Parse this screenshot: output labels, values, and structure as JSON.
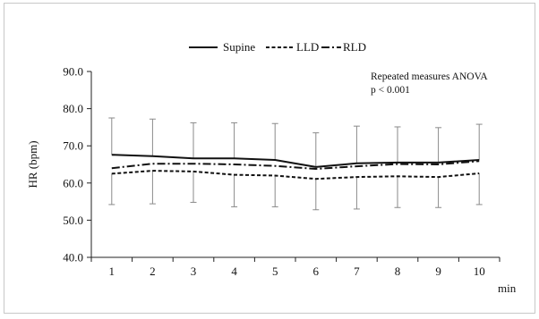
{
  "chart_data": {
    "type": "line",
    "title": "",
    "xlabel": "min",
    "ylabel": "HR  (bpm)",
    "x": [
      1,
      2,
      3,
      4,
      5,
      6,
      7,
      8,
      9,
      10
    ],
    "x_tick_labels": [
      "1",
      "2",
      "3",
      "4",
      "5",
      "6",
      "7",
      "8",
      "9",
      "10"
    ],
    "y_tick_labels": [
      "40.0",
      "50.0",
      "60.0",
      "70.0",
      "80.0",
      "90.0"
    ],
    "ylim": [
      40,
      90
    ],
    "y_ticks": [
      40,
      50,
      60,
      70,
      80,
      90
    ],
    "grid": false,
    "legend_position": "top-center",
    "series": [
      {
        "name": "Supine",
        "line_style": "solid",
        "values": [
          67.6,
          67.2,
          66.6,
          66.6,
          66.2,
          64.3,
          65.3,
          65.5,
          65.5,
          66.2
        ],
        "error_upper": [
          77.5,
          77.2,
          76.2,
          76.2,
          76.0,
          73.5,
          75.3,
          75.1,
          74.9,
          75.8
        ]
      },
      {
        "name": "LLD",
        "line_style": "dashed",
        "values": [
          62.5,
          63.3,
          63.1,
          62.2,
          62.0,
          61.1,
          61.6,
          61.8,
          61.6,
          62.6
        ],
        "error_lower": [
          54.2,
          54.4,
          54.8,
          53.6,
          53.6,
          52.8,
          53.0,
          53.4,
          53.4,
          54.2
        ]
      },
      {
        "name": "RLD",
        "line_style": "dash-dot",
        "values": [
          64.0,
          65.2,
          65.2,
          65.0,
          64.6,
          63.8,
          64.5,
          65.1,
          65.0,
          65.9
        ]
      }
    ],
    "annotations": [
      "Repeated measures ANOVA",
      "p < 0.001"
    ]
  },
  "colors": {
    "line": "#111111",
    "errorbar": "#8a8a8a",
    "axis": "#222222"
  }
}
